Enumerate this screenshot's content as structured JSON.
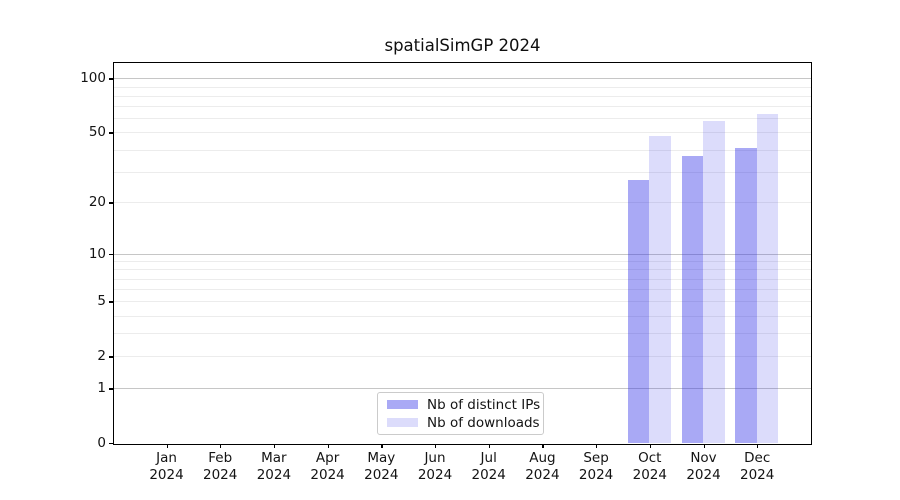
{
  "chart_data": {
    "type": "bar",
    "title": "spatialSimGP 2024",
    "x_months": [
      "Jan",
      "Feb",
      "Mar",
      "Apr",
      "May",
      "Jun",
      "Jul",
      "Aug",
      "Sep",
      "Oct",
      "Nov",
      "Dec"
    ],
    "x_year": "2024",
    "categories": [
      "Jan 2024",
      "Feb 2024",
      "Mar 2024",
      "Apr 2024",
      "May 2024",
      "Jun 2024",
      "Jul 2024",
      "Aug 2024",
      "Sep 2024",
      "Oct 2024",
      "Nov 2024",
      "Dec 2024"
    ],
    "series": [
      {
        "name": "Nb of distinct IPs",
        "color": "rgba(40,40,230,0.40)",
        "values": [
          null,
          null,
          null,
          null,
          null,
          null,
          null,
          null,
          null,
          27,
          37,
          41
        ]
      },
      {
        "name": "Nb of downloads",
        "color": "rgba(40,40,230,0.165)",
        "values": [
          null,
          null,
          null,
          null,
          null,
          null,
          null,
          null,
          null,
          48,
          58,
          63
        ]
      }
    ],
    "yscale": "log1p",
    "ylim": [
      0,
      122
    ],
    "y_tick_values": [
      0,
      1,
      2,
      5,
      10,
      20,
      50,
      100
    ],
    "y_major_gridlines": [
      1,
      10,
      100
    ],
    "y_minor_gridlines": [
      2,
      3,
      4,
      5,
      6,
      7,
      8,
      9,
      20,
      30,
      40,
      50,
      60,
      70,
      80,
      90
    ],
    "grid": true,
    "legend_position": "lower center",
    "xlabel": "",
    "ylabel": ""
  },
  "colors": {
    "frame": "#000000",
    "major_grid": "#c6c6c6",
    "minor_grid": "#ececec",
    "text": "#141414",
    "background": "#ffffff"
  }
}
